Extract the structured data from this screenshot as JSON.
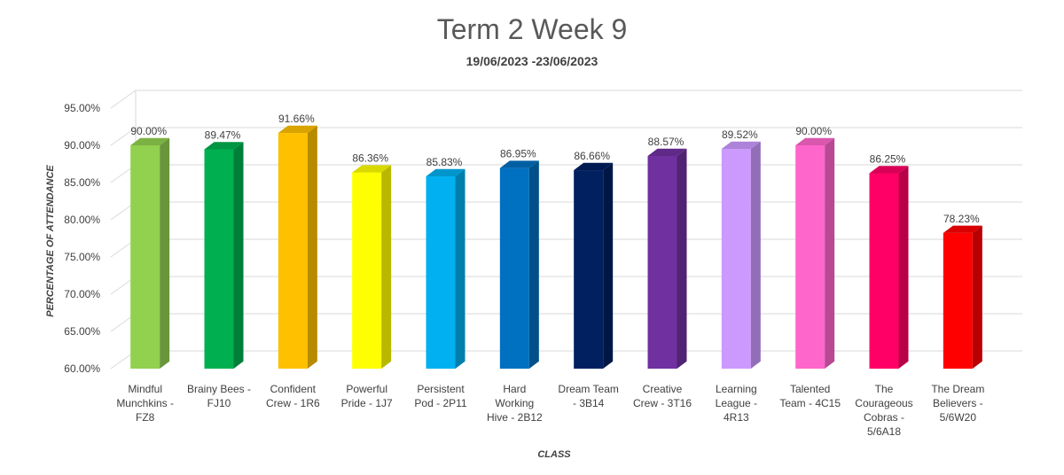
{
  "chart_data": {
    "type": "bar",
    "title": "Term 2 Week 9",
    "subtitle": "19/06/2023 -23/06/2023",
    "xlabel": "CLASS",
    "ylabel": "PERCENTAGE OF ATTENDANCE",
    "ylim": [
      60,
      95
    ],
    "ytick_values": [
      60,
      65,
      70,
      75,
      80,
      85,
      90,
      95
    ],
    "ytick_labels": [
      "60.00%",
      "65.00%",
      "70.00%",
      "75.00%",
      "80.00%",
      "85.00%",
      "90.00%",
      "95.00%"
    ],
    "grid": true,
    "style": "3d-column",
    "categories": [
      [
        "Mindful",
        "Munchkins -",
        "FZ8"
      ],
      [
        "Brainy Bees -",
        "FJ10"
      ],
      [
        "Confident",
        "Crew - 1R6"
      ],
      [
        "Powerful",
        "Pride - 1J7"
      ],
      [
        "Persistent",
        "Pod - 2P11"
      ],
      [
        "Hard",
        "Working",
        "Hive - 2B12"
      ],
      [
        "Dream Team",
        "- 3B14"
      ],
      [
        "Creative",
        "Crew - 3T16"
      ],
      [
        "Learning",
        "League -",
        "4R13"
      ],
      [
        "Talented",
        "Team - 4C15"
      ],
      [
        "The",
        "Courageous",
        "Cobras -",
        "5/6A18"
      ],
      [
        "The Dream",
        "Believers -",
        "5/6W20"
      ]
    ],
    "values": [
      90.0,
      89.47,
      91.66,
      86.36,
      85.83,
      86.95,
      86.66,
      88.57,
      89.52,
      90.0,
      86.25,
      78.23
    ],
    "data_labels": [
      "90.00%",
      "89.47%",
      "91.66%",
      "86.36%",
      "85.83%",
      "86.95%",
      "86.66%",
      "88.57%",
      "89.52%",
      "90.00%",
      "86.25%",
      "78.23%"
    ],
    "colors": [
      "#92D050",
      "#00B050",
      "#FFC000",
      "#FFFF00",
      "#00B0F0",
      "#0070C0",
      "#002060",
      "#7030A0",
      "#CC99FF",
      "#FF66CC",
      "#FF0066",
      "#FF0000"
    ]
  }
}
